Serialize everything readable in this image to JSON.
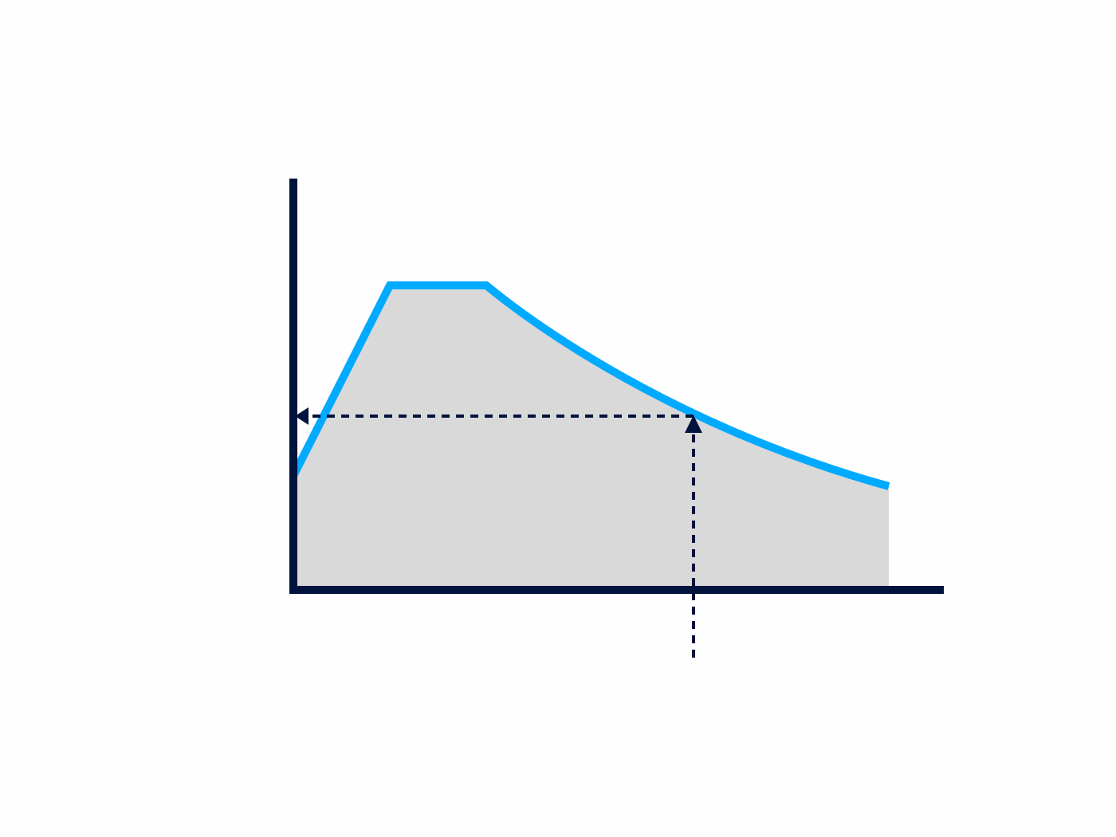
{
  "diagram": {
    "type": "area-curve-with-lookup-arrows",
    "labels": [],
    "colors": {
      "axis": "#00133d",
      "curve": "#00aaff",
      "fill": "#d9d9d9",
      "guide": "#00133d",
      "background": "#fefefe"
    }
  }
}
